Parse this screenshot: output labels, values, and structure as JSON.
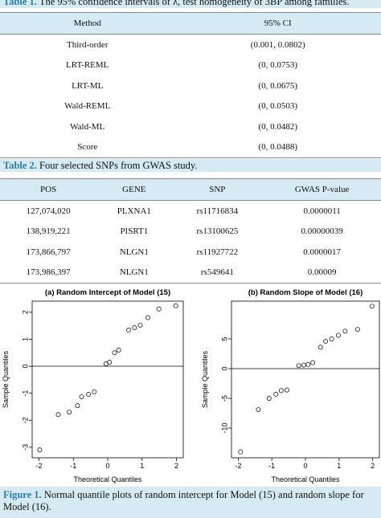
{
  "table1": {
    "label": "Table 1.",
    "caption": "The 95% confidence intervals of λ, test homogeneity of 3BP among families.",
    "headers": [
      "Method",
      "95% CI"
    ],
    "rows": [
      [
        "Third-order",
        "(0.001, 0.0802)"
      ],
      [
        "LRT-REML",
        "(0, 0.0753)"
      ],
      [
        "LRT-ML",
        "(0, 0.0675)"
      ],
      [
        "Wald-REML",
        "(0, 0.0503)"
      ],
      [
        "Wald-ML",
        "(0, 0.0482)"
      ],
      [
        "Score",
        "(0, 0.0488)"
      ]
    ]
  },
  "table2": {
    "label": "Table 2.",
    "caption": "Four selected SNPs from GWAS study.",
    "headers": [
      "POS",
      "GENE",
      "SNP",
      "GWAS P-value"
    ],
    "rows": [
      [
        "127,074,020",
        "PLXNA1",
        "rs11716834",
        "0.0000011"
      ],
      [
        "138,919,221",
        "PISRT1",
        "rs13100625",
        "0.00000039"
      ],
      [
        "173,866,797",
        "NLGN1",
        "rs11927722",
        "0.0000017"
      ],
      [
        "173,986,397",
        "NLGN1",
        "rs549641",
        "0.00009"
      ]
    ]
  },
  "chart_data": [
    {
      "type": "scatter",
      "title": "(a) Random Intercept of Model (15)",
      "x_label": "Theoretical Quantiles",
      "y_label": "Sample Quantiles",
      "xlim": [
        -2.2,
        2.2
      ],
      "xticks": [
        -2,
        -1,
        0,
        1,
        2
      ],
      "ylim": [
        -3.39,
        2.41
      ],
      "yticks": [
        -3,
        -2,
        -1,
        0,
        1,
        2
      ],
      "hline": 0,
      "x": [
        -1.98,
        -1.44,
        -1.12,
        -0.88,
        -0.76,
        -0.56,
        -0.39,
        -0.05,
        0.05,
        0.2,
        0.32,
        0.61,
        0.78,
        0.95,
        1.17,
        1.49,
        1.98
      ],
      "values": [
        -3.1,
        -1.79,
        -1.7,
        -1.46,
        -1.13,
        -1.04,
        -0.95,
        0.09,
        0.15,
        0.5,
        0.6,
        1.34,
        1.43,
        1.52,
        1.8,
        2.12,
        2.24
      ]
    },
    {
      "type": "scatter",
      "title": "(b) Random Slope of Model (16)",
      "x_label": "Theoretical Quantiles",
      "y_label": "Sample Quantiles",
      "xlim": [
        -2.2,
        2.2
      ],
      "xticks": [
        -2,
        -1,
        0,
        1,
        2
      ],
      "ylim": [
        -15,
        11.35
      ],
      "yticks": [
        -10,
        -5,
        0,
        5
      ],
      "hline": 0,
      "x": [
        -1.93,
        -1.4,
        -1.08,
        -0.88,
        -0.72,
        -0.55,
        -0.2,
        -0.05,
        0.08,
        0.22,
        0.45,
        0.6,
        0.78,
        0.98,
        1.18,
        1.55,
        1.98
      ],
      "values": [
        -14,
        -6.9,
        -5,
        -4.3,
        -3.7,
        -3.6,
        0.5,
        0.6,
        0.7,
        1,
        3.6,
        4.6,
        5,
        5.6,
        6.3,
        6.6,
        10.5
      ]
    }
  ],
  "figure": {
    "label": "Figure 1.",
    "caption": "Normal quantile plots of random intercept for Model (15) and random slope for Model (16)."
  }
}
